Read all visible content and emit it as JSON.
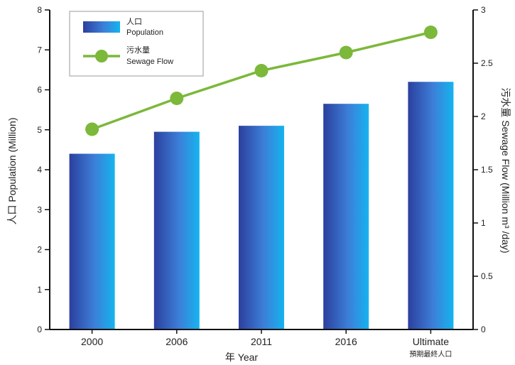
{
  "chart_data": {
    "type": "bar",
    "categories": [
      "2000",
      "2006",
      "2011",
      "2016",
      "Ultimate"
    ],
    "category_sublabels": [
      "",
      "",
      "",
      "",
      "預期最終人口"
    ],
    "series": [
      {
        "name": "人口 Population",
        "name_lines": [
          "人口",
          "Population"
        ],
        "type": "bar",
        "axis": "left",
        "values": [
          4.4,
          4.95,
          5.1,
          5.65,
          6.2
        ],
        "color": "#3a6fd0"
      },
      {
        "name": "污水量 Sewage Flow",
        "name_lines": [
          "污水量",
          "Sewage Flow"
        ],
        "type": "line",
        "axis": "right",
        "values": [
          1.88,
          2.17,
          2.43,
          2.6,
          2.79
        ],
        "color": "#7cb83a"
      }
    ],
    "xlabel": "年 Year",
    "ylabel_left": "人口 Population (Million)",
    "ylabel_right": "污水量  Sewage Flow (Million m³ /day)",
    "ylim_left": [
      0,
      8
    ],
    "yticks_left": [
      0,
      1,
      2,
      3,
      4,
      5,
      6,
      7,
      8
    ],
    "ylim_right": [
      0,
      3
    ],
    "yticks_right": [
      "0",
      "0.5",
      "1",
      "1.5",
      "2",
      "2.5",
      "3"
    ],
    "legend_position": "top-left",
    "grid": false
  },
  "labels": {
    "xlabel": "年 Year",
    "ylabel_left": "人口 Population (Million)",
    "ylabel_right": "污水量  Sewage Flow (Million m³ /day)"
  }
}
